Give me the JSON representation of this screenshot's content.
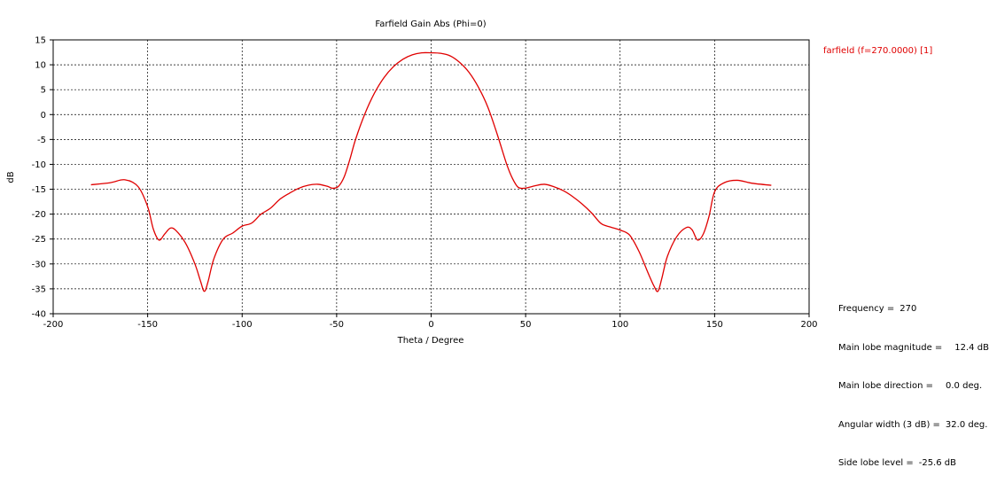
{
  "chart_data": {
    "type": "line",
    "title": "Farfield Gain Abs (Phi=0)",
    "xlabel": "Theta / Degree",
    "ylabel": "dB",
    "xlim": [
      -200,
      200
    ],
    "ylim": [
      -40,
      15
    ],
    "xticks": [
      -200,
      -150,
      -100,
      -50,
      0,
      50,
      100,
      150,
      200
    ],
    "yticks": [
      15,
      10,
      5,
      0,
      -5,
      -10,
      -15,
      -20,
      -25,
      -30,
      -35,
      -40
    ],
    "grid": true,
    "legend": "top-right, outside plot",
    "series": [
      {
        "name": "farfield (f=270.0000) [1]",
        "color": "#e00000",
        "x": [
          -180,
          -170,
          -162,
          -155,
          -150,
          -147,
          -144,
          -141,
          -138,
          -135,
          -130,
          -125,
          -122,
          -120,
          -118,
          -115,
          -110,
          -105,
          -100,
          -95,
          -90,
          -85,
          -80,
          -75,
          -70,
          -65,
          -60,
          -55,
          -52,
          -49,
          -46,
          -43,
          -40,
          -35,
          -30,
          -25,
          -20,
          -15,
          -10,
          -5,
          0,
          5,
          10,
          15,
          20,
          25,
          30,
          35,
          40,
          43,
          46,
          49,
          52,
          55,
          60,
          65,
          70,
          75,
          80,
          85,
          90,
          95,
          100,
          105,
          110,
          115,
          118,
          120,
          122,
          125,
          130,
          135,
          138,
          141,
          144,
          147,
          150,
          155,
          162,
          170,
          180
        ],
        "values": [
          -14.1,
          -13.7,
          -13.1,
          -14.5,
          -18.5,
          -23.0,
          -25.2,
          -24.0,
          -22.8,
          -23.3,
          -25.8,
          -30.0,
          -33.5,
          -35.5,
          -33.5,
          -29.0,
          -25.0,
          -23.8,
          -22.4,
          -21.8,
          -20.0,
          -18.8,
          -17.0,
          -15.8,
          -14.8,
          -14.2,
          -14.0,
          -14.4,
          -14.8,
          -14.4,
          -12.5,
          -9.0,
          -5.0,
          0.2,
          4.3,
          7.4,
          9.6,
          11.1,
          12.0,
          12.4,
          12.4,
          12.3,
          11.8,
          10.5,
          8.5,
          5.5,
          1.5,
          -4.0,
          -10.0,
          -12.8,
          -14.6,
          -14.8,
          -14.6,
          -14.3,
          -14.0,
          -14.5,
          -15.3,
          -16.5,
          -18.0,
          -19.8,
          -21.9,
          -22.6,
          -23.2,
          -24.2,
          -27.5,
          -32.0,
          -34.5,
          -35.5,
          -33.0,
          -28.5,
          -24.5,
          -22.7,
          -23.1,
          -25.2,
          -24.0,
          -20.5,
          -15.5,
          -13.7,
          -13.2,
          -13.8,
          -14.2
        ]
      }
    ]
  },
  "info": {
    "frequency_label": "Frequency =",
    "frequency_value": "270",
    "magnitude_label": "Main lobe magnitude =",
    "magnitude_value": "12.4 dB",
    "direction_label": "Main lobe direction =",
    "direction_value": "0.0 deg.",
    "width_label": "Angular width (3 dB) =",
    "width_value": "32.0 deg.",
    "sidelobe_label": "Side lobe level =",
    "sidelobe_value": "-25.6 dB"
  }
}
